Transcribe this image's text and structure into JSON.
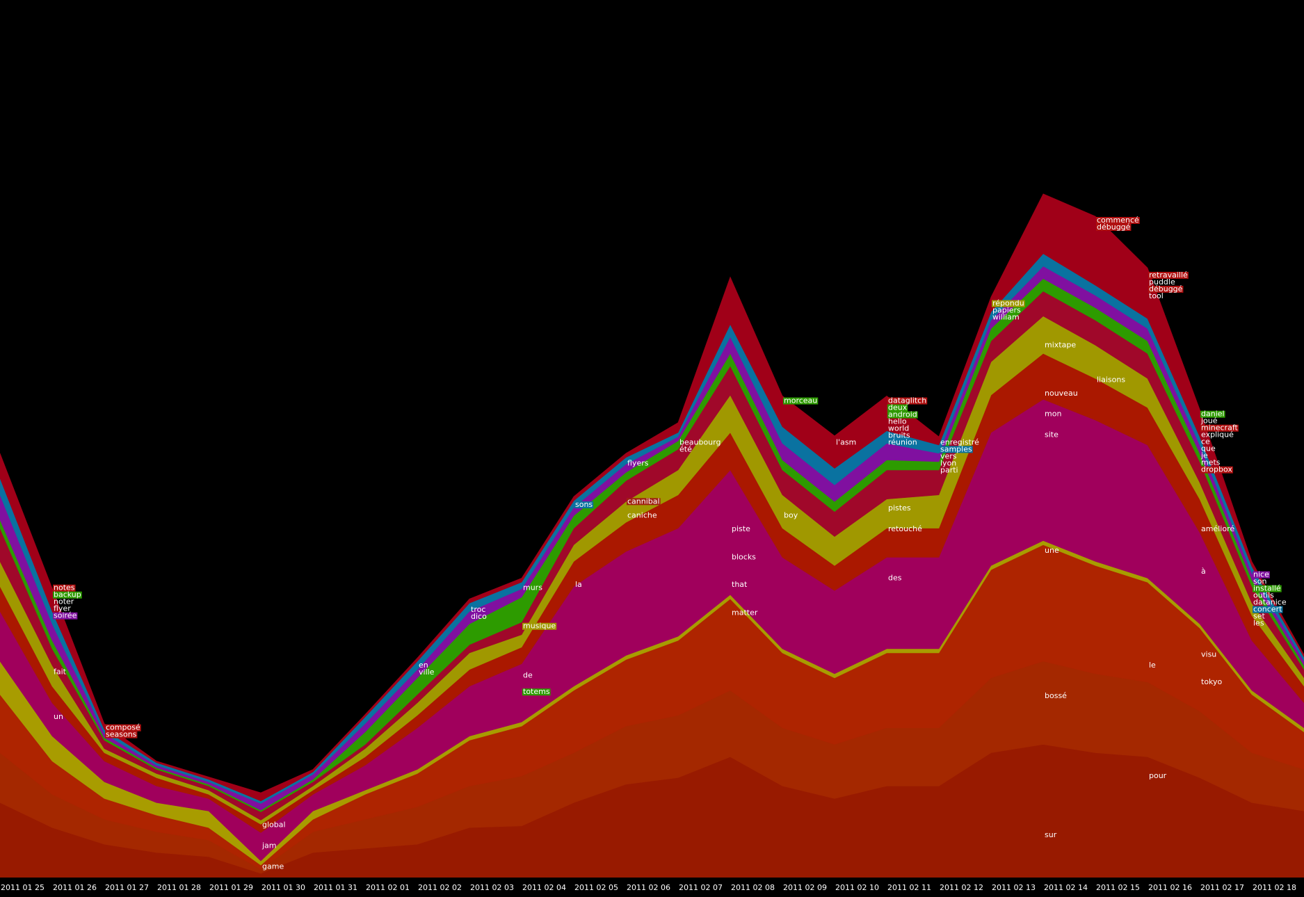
{
  "chart_data": {
    "type": "streamgraph",
    "categories": [
      "2011 01 25",
      "2011 01 26",
      "2011 01 27",
      "2011 01 28",
      "2011 01 29",
      "2011 01 30",
      "2011 01 31",
      "2011 02 01",
      "2011 02 02",
      "2011 02 03",
      "2011 02 04",
      "2011 02 05",
      "2011 02 06",
      "2011 02 07",
      "2011 02 08",
      "2011 02 09",
      "2011 02 10",
      "2011 02 11",
      "2011 02 12",
      "2011 02 13",
      "2011 02 14",
      "2011 02 15",
      "2011 02 16",
      "2011 02 17",
      "2011 02 18",
      null
    ],
    "ylim": [
      0,
      1055
    ],
    "series": [
      {
        "color": "#981a00",
        "values": [
          90,
          60,
          40,
          30,
          25,
          5,
          30,
          35,
          40,
          60,
          62,
          90,
          112,
          120,
          145,
          110,
          95,
          110,
          110,
          150,
          160,
          150,
          145,
          120,
          90,
          80
        ]
      },
      {
        "color": "#a42800",
        "values": [
          60,
          40,
          30,
          25,
          20,
          5,
          25,
          35,
          45,
          50,
          60,
          60,
          70,
          75,
          80,
          70,
          65,
          70,
          70,
          90,
          100,
          95,
          90,
          80,
          60,
          50
        ]
      },
      {
        "color": "#ae2400",
        "values": [
          70,
          40,
          25,
          20,
          15,
          5,
          15,
          30,
          40,
          55,
          60,
          75,
          80,
          90,
          110,
          90,
          80,
          90,
          90,
          130,
          140,
          130,
          120,
          100,
          70,
          45
        ]
      },
      {
        "color": "#a89c00",
        "values": [
          40,
          30,
          20,
          15,
          20,
          5,
          10,
          5,
          5,
          5,
          5,
          5,
          5,
          5,
          5,
          5,
          5,
          5,
          5,
          5,
          5,
          5,
          5,
          5,
          5,
          5
        ]
      },
      {
        "color": "#a0005c",
        "values": [
          60,
          40,
          25,
          20,
          15,
          34,
          20,
          30,
          50,
          60,
          70,
          120,
          125,
          130,
          150,
          110,
          100,
          110,
          110,
          160,
          170,
          170,
          160,
          110,
          60,
          30
        ]
      },
      {
        "color": "#aa1800",
        "values": [
          30,
          20,
          10,
          10,
          5,
          10,
          5,
          10,
          15,
          20,
          20,
          30,
          35,
          40,
          45,
          35,
          30,
          35,
          35,
          45,
          55,
          50,
          45,
          40,
          30,
          20
        ]
      },
      {
        "color": "#a09800",
        "values": [
          30,
          25,
          5,
          5,
          5,
          5,
          5,
          10,
          15,
          20,
          15,
          20,
          25,
          30,
          45,
          40,
          35,
          35,
          40,
          40,
          45,
          40,
          35,
          20,
          15,
          10
        ]
      },
      {
        "color": "#a0082a",
        "values": [
          40,
          20,
          10,
          5,
          5,
          10,
          5,
          5,
          10,
          10,
          15,
          20,
          25,
          25,
          35,
          30,
          30,
          35,
          30,
          25,
          30,
          30,
          30,
          25,
          20,
          10
        ]
      },
      {
        "color": "#2d9b00",
        "values": [
          10,
          10,
          3,
          2,
          2,
          2,
          3,
          15,
          20,
          25,
          30,
          15,
          10,
          10,
          15,
          12,
          12,
          12,
          10,
          15,
          15,
          15,
          15,
          10,
          8,
          5
        ]
      },
      {
        "color": "#8010a0",
        "values": [
          30,
          20,
          5,
          3,
          3,
          8,
          6,
          10,
          10,
          15,
          10,
          10,
          10,
          5,
          20,
          20,
          20,
          20,
          10,
          10,
          15,
          15,
          15,
          10,
          8,
          5
        ]
      },
      {
        "color": "#0a72a0",
        "values": [
          20,
          15,
          5,
          3,
          3,
          3,
          3,
          8,
          10,
          10,
          8,
          8,
          8,
          5,
          15,
          20,
          20,
          15,
          10,
          10,
          15,
          12,
          12,
          10,
          8,
          5
        ]
      },
      {
        "color": "#a00018",
        "values": [
          30,
          28,
          7,
          2,
          3,
          10,
          3,
          3,
          4,
          5,
          5,
          5,
          5,
          12,
          57,
          37,
          39,
          42,
          10,
          18,
          72,
          83,
          61,
          33,
          6,
          3
        ]
      }
    ],
    "annotations": [
      {
        "x": "2011 01 26",
        "y": 348,
        "words": [
          {
            "text": "notes",
            "bg": "#b01010"
          },
          {
            "text": "backup",
            "bg": "#2d9b00"
          },
          "noter",
          "flyer",
          {
            "text": "soirée",
            "bg": "#8010a0"
          }
        ]
      },
      {
        "x": "2011 01 26",
        "y": 247,
        "words": [
          "fait"
        ]
      },
      {
        "x": "2011 01 26",
        "y": 193,
        "words": [
          "un"
        ]
      },
      {
        "x": "2011 01 27",
        "y": 180,
        "words": [
          {
            "text": "composé",
            "bg": "#b01010"
          },
          {
            "text": "seasons",
            "bg": "#b01010"
          }
        ]
      },
      {
        "x": "2011 01 30",
        "y": 63,
        "words": [
          "global"
        ]
      },
      {
        "x": "2011 01 30",
        "y": 38,
        "words": [
          "jam"
        ]
      },
      {
        "x": "2011 01 30",
        "y": 13,
        "words": [
          "game"
        ]
      },
      {
        "x": "2011 02 02",
        "y": 255,
        "words": [
          "en",
          "ville"
        ]
      },
      {
        "x": "2011 02 03",
        "y": 322,
        "words": [
          "troc",
          "dico"
        ]
      },
      {
        "x": "2011 02 04",
        "y": 348,
        "words": [
          "murs"
        ]
      },
      {
        "x": "2011 02 04",
        "y": 302,
        "words": [
          {
            "text": "musique",
            "bg": "#a09800"
          }
        ]
      },
      {
        "x": "2011 02 04",
        "y": 243,
        "words": [
          "de"
        ]
      },
      {
        "x": "2011 02 04",
        "y": 223,
        "words": [
          {
            "text": "totems",
            "bg": "#2d9b00"
          }
        ]
      },
      {
        "x": "2011 02 05",
        "y": 448,
        "words": [
          {
            "text": "sons",
            "bg": "#0a72a0"
          }
        ]
      },
      {
        "x": "2011 02 05",
        "y": 352,
        "words": [
          "la"
        ]
      },
      {
        "x": "2011 02 06",
        "y": 498,
        "words": [
          "flyers"
        ]
      },
      {
        "x": "2011 02 06",
        "y": 452,
        "words": [
          {
            "text": "cannibal",
            "bg": "#a02010"
          }
        ]
      },
      {
        "x": "2011 02 06",
        "y": 435,
        "words": [
          "caniche"
        ]
      },
      {
        "x": "2011 02 07",
        "y": 523,
        "words": [
          "beaubourg",
          "été"
        ]
      },
      {
        "x": "2011 02 08",
        "y": 419,
        "words": [
          "piste"
        ]
      },
      {
        "x": "2011 02 08",
        "y": 385,
        "words": [
          "blocks"
        ]
      },
      {
        "x": "2011 02 08",
        "y": 352,
        "words": [
          "that"
        ]
      },
      {
        "x": "2011 02 08",
        "y": 318,
        "words": [
          "matter"
        ]
      },
      {
        "x": "2011 02 09",
        "y": 573,
        "words": [
          {
            "text": "morceau",
            "bg": "#2d9b00"
          }
        ]
      },
      {
        "x": "2011 02 09",
        "y": 435,
        "words": [
          "boy"
        ]
      },
      {
        "x": "2011 02 10",
        "y": 523,
        "words": [
          "l'asm"
        ]
      },
      {
        "x": "2011 02 11",
        "y": 573,
        "words": [
          {
            "text": "dataglitch",
            "bg": "#b01010"
          },
          {
            "text": "deux",
            "bg": "#2d9b00"
          },
          {
            "text": "android",
            "bg": "#2d9b00"
          },
          "hello",
          "world",
          "bruits",
          "réunion"
        ]
      },
      {
        "x": "2011 02 11",
        "y": 444,
        "words": [
          "pistes"
        ]
      },
      {
        "x": "2011 02 11",
        "y": 419,
        "words": [
          "retouché"
        ]
      },
      {
        "x": "2011 02 11",
        "y": 360,
        "words": [
          "des"
        ]
      },
      {
        "x": "2011 02 12",
        "y": 523,
        "words": [
          "enregistré",
          {
            "text": "samples",
            "bg": "#0a72a0"
          },
          "vers",
          "lyon",
          "parti"
        ]
      },
      {
        "x": "2011 02 13",
        "y": 690,
        "words": [
          {
            "text": "répondu",
            "bg": "#a09800"
          },
          "papiers",
          "william"
        ]
      },
      {
        "x": "2011 02 14",
        "y": 640,
        "words": [
          "mixtape"
        ]
      },
      {
        "x": "2011 02 14",
        "y": 582,
        "words": [
          "nouveau"
        ]
      },
      {
        "x": "2011 02 14",
        "y": 557,
        "words": [
          "mon"
        ]
      },
      {
        "x": "2011 02 14",
        "y": 532,
        "words": [
          "site"
        ]
      },
      {
        "x": "2011 02 14",
        "y": 393,
        "words": [
          "une"
        ]
      },
      {
        "x": "2011 02 14",
        "y": 218,
        "words": [
          "bossé"
        ]
      },
      {
        "x": "2011 02 14",
        "y": 51,
        "words": [
          "sur"
        ]
      },
      {
        "x": "2011 02 15",
        "y": 790,
        "words": [
          {
            "text": "commencé",
            "bg": "#b01010"
          },
          {
            "text": "débuggé",
            "bg": "#b01010"
          }
        ]
      },
      {
        "x": "2011 02 15",
        "y": 598,
        "words": [
          "liaisons"
        ]
      },
      {
        "x": "2011 02 16",
        "y": 724,
        "words": [
          {
            "text": "retravaillé",
            "bg": "#b01010"
          },
          "puddle",
          {
            "text": "débuggé",
            "bg": "#b01010"
          },
          "tool"
        ]
      },
      {
        "x": "2011 02 16",
        "y": 255,
        "words": [
          "le"
        ]
      },
      {
        "x": "2011 02 16",
        "y": 122,
        "words": [
          "pour"
        ]
      },
      {
        "x": "2011 02 17",
        "y": 557,
        "words": [
          {
            "text": "daniel",
            "bg": "#2d9b00"
          },
          "joué",
          {
            "text": "minecraft",
            "bg": "#b01010"
          },
          "expliqué",
          "ce",
          "que",
          "je",
          "mets",
          {
            "text": "dropbox",
            "bg": "#b01010"
          }
        ]
      },
      {
        "x": "2011 02 17",
        "y": 419,
        "words": [
          "amélioré"
        ]
      },
      {
        "x": "2011 02 17",
        "y": 368,
        "words": [
          "à"
        ]
      },
      {
        "x": "2011 02 17",
        "y": 268,
        "words": [
          "visu"
        ]
      },
      {
        "x": "2011 02 17",
        "y": 235,
        "words": [
          "tokyo"
        ]
      },
      {
        "x": "2011 02 18",
        "y": 364,
        "words": [
          {
            "text": "nice",
            "bg": "#8010a0"
          },
          "son",
          {
            "text": "installé",
            "bg": "#2d9b00"
          },
          "outils",
          "datanice",
          {
            "text": "concert",
            "bg": "#0a72a0"
          },
          "set",
          "les"
        ]
      }
    ]
  }
}
